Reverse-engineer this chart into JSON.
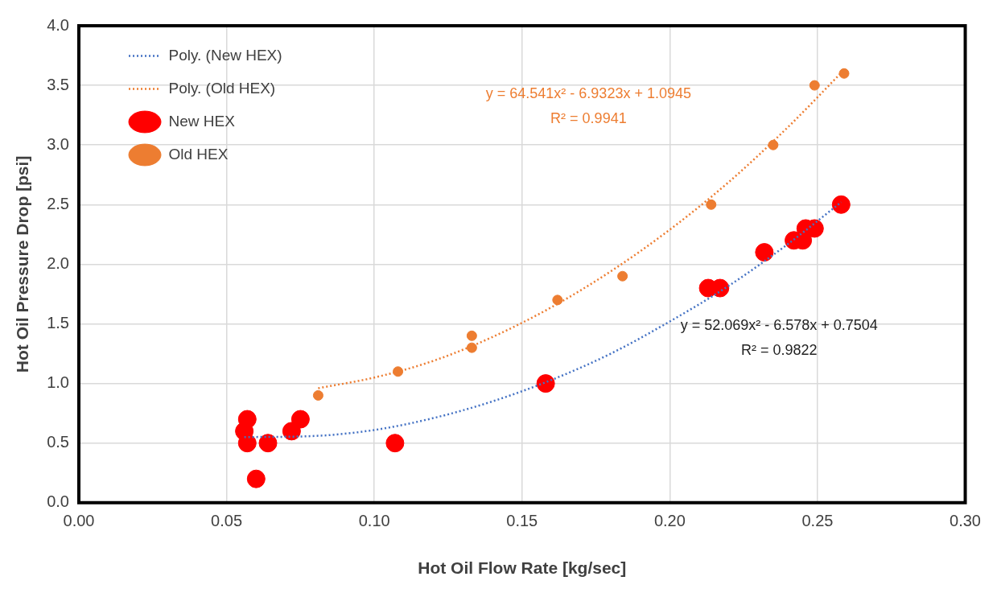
{
  "chart_data": {
    "type": "scatter",
    "xlabel": "Hot Oil Flow Rate [kg/sec]",
    "ylabel": "Hot Oil Pressure Drop [psi]",
    "xlim": [
      0,
      0.3
    ],
    "xticks": [
      {
        "value": 0,
        "label": "0.00"
      },
      {
        "value": 0.05,
        "label": "0.05"
      },
      {
        "value": 0.1,
        "label": "0.10"
      },
      {
        "value": 0.15,
        "label": "0.15"
      },
      {
        "value": 0.2,
        "label": "0.20"
      },
      {
        "value": 0.25,
        "label": "0.25"
      },
      {
        "value": 0.3,
        "label": "0.30"
      }
    ],
    "ylim": [
      0,
      4
    ],
    "yticks": [
      {
        "value": 0,
        "label": "0.0"
      },
      {
        "value": 0.5,
        "label": "0.5"
      },
      {
        "value": 1,
        "label": "1.0"
      },
      {
        "value": 1.5,
        "label": "1.5"
      },
      {
        "value": 2,
        "label": "2.0"
      },
      {
        "value": 2.5,
        "label": "2.5"
      },
      {
        "value": 3,
        "label": "3.0"
      },
      {
        "value": 3.5,
        "label": "3.5"
      },
      {
        "value": 4,
        "label": "4.0"
      }
    ],
    "grid": true,
    "legend": "top left",
    "series": [
      {
        "name": "New HEX",
        "marker": "circle",
        "color": "#ff0000",
        "x": [
          0.057,
          0.056,
          0.057,
          0.06,
          0.064,
          0.072,
          0.075,
          0.107,
          0.158,
          0.213,
          0.217,
          0.232,
          0.242,
          0.245,
          0.246,
          0.249,
          0.258
        ],
        "values": [
          0.7,
          0.6,
          0.5,
          0.2,
          0.5,
          0.6,
          0.7,
          0.5,
          1.0,
          1.8,
          1.8,
          2.1,
          2.2,
          2.2,
          2.3,
          2.3,
          2.5
        ]
      },
      {
        "name": "Old HEX",
        "marker": "circle",
        "color": "#ed7d31",
        "x": [
          0.081,
          0.108,
          0.133,
          0.133,
          0.162,
          0.184,
          0.214,
          0.235,
          0.249,
          0.259
        ],
        "values": [
          0.9,
          1.1,
          1.4,
          1.3,
          1.7,
          1.9,
          2.5,
          3.0,
          3.5,
          3.6
        ]
      },
      {
        "name": "Poly. (New HEX)",
        "type": "line",
        "marker": "none",
        "line_style": "dotted",
        "color": "#4472c4",
        "x": [
          0.056,
          0.08,
          0.1,
          0.12,
          0.14,
          0.16,
          0.18,
          0.2,
          0.22,
          0.24,
          0.258
        ],
        "values": [
          0.55,
          0.56,
          0.61,
          0.71,
          0.85,
          1.03,
          1.25,
          1.52,
          1.82,
          2.17,
          2.52
        ]
      },
      {
        "name": "Poly. (Old HEX)",
        "type": "line",
        "marker": "none",
        "line_style": "dotted",
        "color": "#ed7d31",
        "x": [
          0.081,
          0.1,
          0.12,
          0.14,
          0.16,
          0.18,
          0.2,
          0.22,
          0.24,
          0.259
        ],
        "values": [
          0.96,
          1.05,
          1.19,
          1.39,
          1.64,
          1.94,
          2.29,
          2.69,
          3.15,
          3.63
        ]
      }
    ],
    "annotations": [
      "y = 64.541x² - 6.9323x + 1.0945",
      "R² = 0.9941",
      "y = 52.069x² - 6.578x + 0.7504",
      "R² = 0.9822"
    ]
  }
}
